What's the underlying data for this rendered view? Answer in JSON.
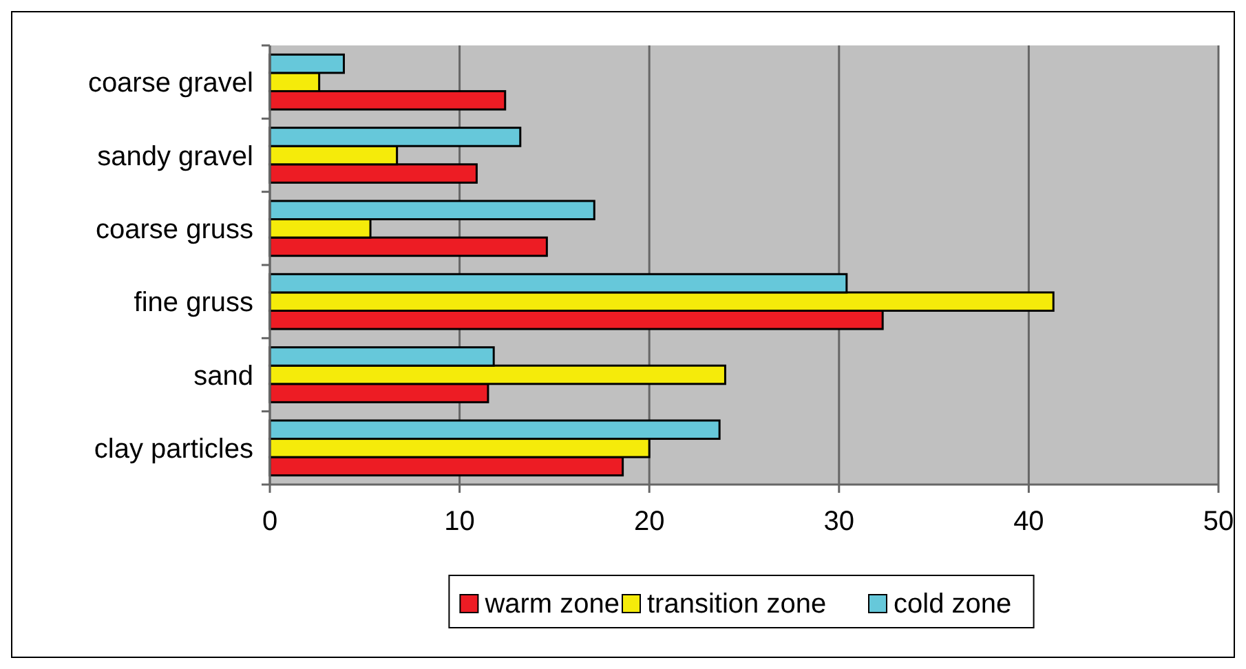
{
  "chart_data": {
    "type": "bar",
    "orientation": "horizontal",
    "categories": [
      "coarse gravel",
      "sandy gravel",
      "coarse gruss",
      "fine gruss",
      "sand",
      "clay particles"
    ],
    "series": [
      {
        "name": "warm zone",
        "color": "#ed1c24",
        "values": [
          12.4,
          10.9,
          14.6,
          32.3,
          11.5,
          18.6
        ]
      },
      {
        "name": "transition zone",
        "color": "#f5eb0a",
        "values": [
          2.6,
          6.7,
          5.3,
          41.3,
          24.0,
          20.0
        ]
      },
      {
        "name": "cold zone",
        "color": "#66c8da",
        "values": [
          3.9,
          13.2,
          17.1,
          30.4,
          11.8,
          23.7
        ]
      }
    ],
    "xlim": [
      0,
      50
    ],
    "xticks": [
      0,
      10,
      20,
      30,
      40,
      50
    ],
    "grid": "x",
    "legend": "bottom"
  }
}
